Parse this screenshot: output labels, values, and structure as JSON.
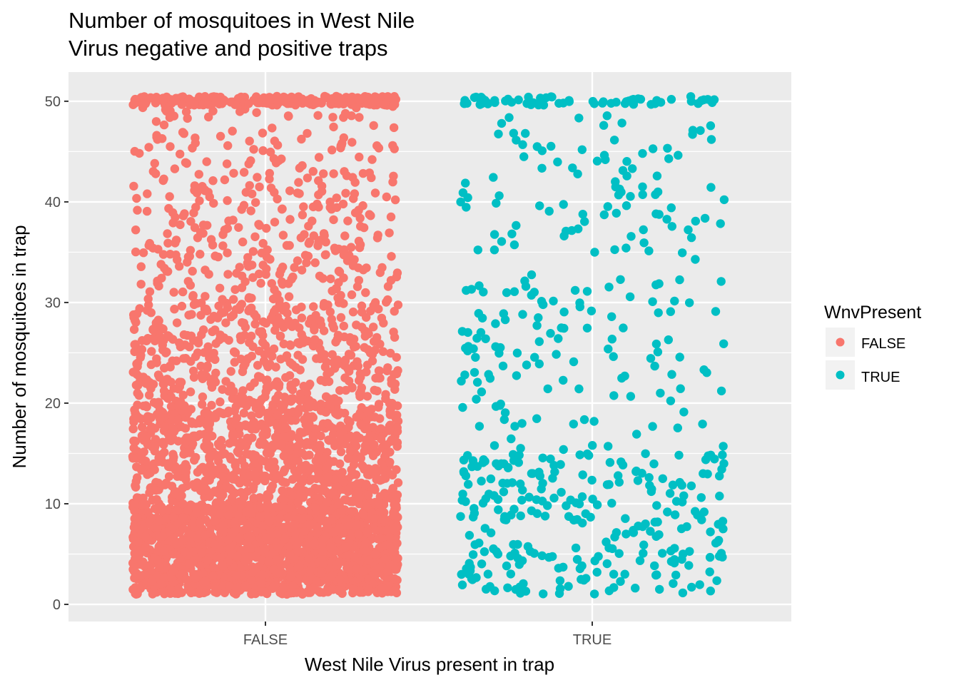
{
  "chart_data": {
    "type": "scatter",
    "title": [
      "Number of mosquitoes in West Nile",
      "Virus negative and positive traps"
    ],
    "xlabel": "West Nile Virus present in trap",
    "ylabel": "Number of mosquitoes in trap",
    "categories": [
      "FALSE",
      "TRUE"
    ],
    "y_ticks": [
      0,
      10,
      20,
      30,
      40,
      50
    ],
    "ylim": [
      -1.7,
      52.9
    ],
    "grid": true,
    "jitter": "horizontal jitter within each category",
    "legend": {
      "title": "WnvPresent",
      "position": "right",
      "entries": [
        {
          "label": "FALSE",
          "color": "#F8766D"
        },
        {
          "label": "TRUE",
          "color": "#00BFC4"
        }
      ]
    },
    "series": [
      {
        "category": "FALSE",
        "color": "#F8766D",
        "approx_point_count": 9955,
        "y_range": [
          1,
          50
        ],
        "distribution": "heavily concentrated at low counts (1-10), density decreasing as count rises, pile-up at 50"
      },
      {
        "category": "TRUE",
        "color": "#00BFC4",
        "approx_point_count": 551,
        "y_range": [
          1,
          50
        ],
        "distribution": "spread fairly evenly from 1 to 50 with a cluster at 50"
      }
    ]
  }
}
